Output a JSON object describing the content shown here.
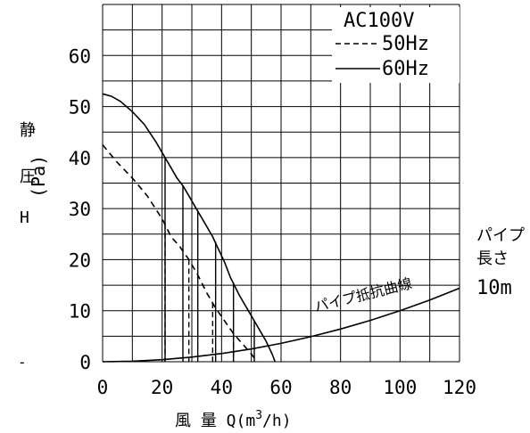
{
  "chart_data": {
    "type": "line",
    "title": "AC100V",
    "xlabel": "風 量 Q(m3/h)",
    "xlabel_parts": {
      "prefix": "風 量 Q(m",
      "sup": "3",
      "suffix": "/h)"
    },
    "ylabel_chars": [
      "静",
      "圧",
      "H"
    ],
    "ylabel_unit": "(Pa)",
    "xlim": [
      0,
      120
    ],
    "ylim": [
      0,
      70
    ],
    "xticks": [
      "0",
      "20",
      "40",
      "60",
      "80",
      "100",
      "120"
    ],
    "yticks": [
      "0",
      "10",
      "20",
      "30",
      "40",
      "50",
      "60"
    ],
    "ytick_dash": "-",
    "grid": true,
    "legend": {
      "position": "top-right",
      "entries": [
        {
          "name": "50Hz",
          "style": "dashed"
        },
        {
          "name": "60Hz",
          "style": "solid"
        }
      ]
    },
    "series": [
      {
        "name": "60Hz",
        "style": "solid",
        "x": [
          0,
          3,
          6,
          10,
          14,
          18,
          21,
          23,
          25,
          27,
          29,
          31,
          33,
          35,
          37,
          39,
          41,
          43,
          46,
          49,
          52,
          55,
          57,
          58
        ],
        "y": [
          52.5,
          52,
          51,
          49,
          46.5,
          43,
          40,
          38,
          36,
          34.5,
          32.5,
          30.5,
          28.5,
          26.5,
          24.5,
          22,
          19.5,
          16.5,
          13,
          10,
          7,
          4,
          1.5,
          0
        ]
      },
      {
        "name": "50Hz",
        "style": "dashed",
        "x": [
          0,
          5,
          10,
          15,
          20,
          23,
          26,
          29,
          32,
          35,
          38,
          41,
          44,
          47,
          50,
          52
        ],
        "y": [
          42.5,
          39,
          36,
          32.5,
          28,
          24.5,
          22.5,
          20,
          17,
          13.5,
          10.5,
          8,
          5.5,
          3.5,
          1.5,
          0
        ]
      },
      {
        "name": "パイプ抵抗曲線",
        "style": "solid",
        "x": [
          0,
          10,
          20,
          30,
          40,
          50,
          60,
          70,
          80,
          90,
          100,
          110,
          120
        ],
        "y": [
          0,
          0.1,
          0.4,
          0.9,
          1.6,
          2.5,
          3.6,
          4.9,
          6.4,
          8.1,
          10,
          12.1,
          14.4
        ]
      }
    ],
    "drops_60hz": [
      {
        "x": 21,
        "from": 40
      },
      {
        "x": 27,
        "from": 34.5
      },
      {
        "x": 32,
        "from": 29.5
      },
      {
        "x": 38,
        "from": 23.5
      },
      {
        "x": 44,
        "from": 15.5
      },
      {
        "x": 51,
        "from": 8
      }
    ],
    "drops_50hz": [
      {
        "x": 21,
        "from": 27
      },
      {
        "x": 29,
        "from": 20
      },
      {
        "x": 37,
        "from": 11.5
      },
      {
        "x": 44,
        "from": 5.5
      }
    ],
    "annotations": {
      "curve_label": "パイプ抵抗曲線",
      "pipe_line1": "パイプ",
      "pipe_line2": "長さ",
      "pipe_length": "10m"
    }
  }
}
